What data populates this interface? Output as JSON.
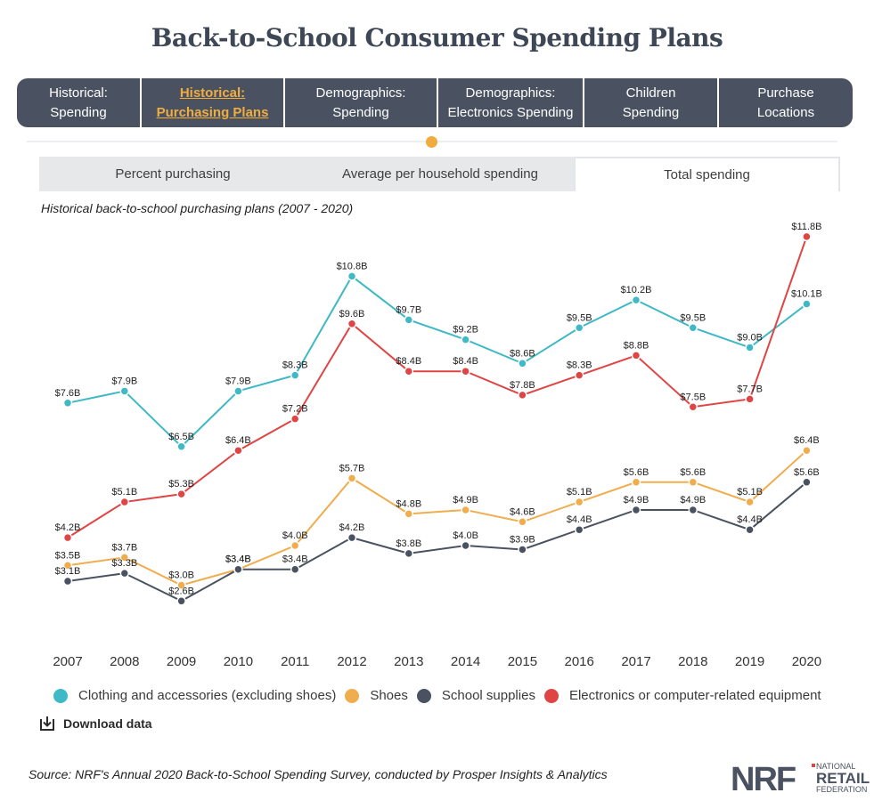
{
  "page": {
    "title": "Back-to-School Consumer Spending Plans"
  },
  "nav": {
    "tabs": [
      {
        "label": "Historical:\nSpending",
        "active": false
      },
      {
        "label": "Historical:\nPurchasing Plans",
        "active": true
      },
      {
        "label": "Demographics:\nSpending",
        "active": false
      },
      {
        "label": "Demographics:\nElectronics Spending",
        "active": false
      },
      {
        "label": "Children\nSpending",
        "active": false
      },
      {
        "label": "Purchase\nLocations",
        "active": false
      }
    ]
  },
  "subtabs": [
    {
      "label": "Percent purchasing",
      "active": false
    },
    {
      "label": "Average per household spending",
      "active": false
    },
    {
      "label": "Total spending",
      "active": true
    }
  ],
  "chart_caption": "Historical back-to-school purchasing plans (2007 - 2020)",
  "chart_data": {
    "type": "line",
    "title": "",
    "x": [
      "2007",
      "2008",
      "2009",
      "2010",
      "2011",
      "2012",
      "2013",
      "2014",
      "2015",
      "2016",
      "2017",
      "2018",
      "2019",
      "2020"
    ],
    "ylim": [
      2.0,
      12.0
    ],
    "grid": false,
    "legend_position": "bottom",
    "series": [
      {
        "name": "Clothing and accessories (excluding shoes)",
        "color": "#3fb9c5",
        "values": [
          7.6,
          7.9,
          6.5,
          7.9,
          8.3,
          10.8,
          9.7,
          9.2,
          8.6,
          9.5,
          10.2,
          9.5,
          9.0,
          10.1
        ],
        "labels": [
          "$7.6B",
          "$7.9B",
          "$6.5B",
          "$7.9B",
          "$8.3B",
          "$10.8B",
          "$9.7B",
          "$9.2B",
          "$8.6B",
          "$9.5B",
          "$10.2B",
          "$9.5B",
          "$9.0B",
          "$10.1B"
        ]
      },
      {
        "name": "Shoes",
        "color": "#f0ad4e",
        "values": [
          3.5,
          3.7,
          3.0,
          3.4,
          4.0,
          5.7,
          4.8,
          4.9,
          4.6,
          5.1,
          5.6,
          5.6,
          5.1,
          6.4
        ],
        "labels": [
          "$3.5B",
          "$3.7B",
          "$3.0B",
          "$3.4B",
          "$4.0B",
          "$5.7B",
          "$4.8B",
          "$4.9B",
          "$4.6B",
          "$5.1B",
          "$5.6B",
          "$5.6B",
          "$5.1B",
          "$6.4B"
        ]
      },
      {
        "name": "School supplies",
        "color": "#4a5262",
        "values": [
          3.1,
          3.3,
          2.6,
          3.4,
          3.4,
          4.2,
          3.8,
          4.0,
          3.9,
          4.4,
          4.9,
          4.9,
          4.4,
          5.6
        ],
        "labels": [
          "$3.1B",
          "$3.3B",
          "$2.6B",
          "$3.4B",
          "$3.4B",
          "$4.2B",
          "$3.8B",
          "$4.0B",
          "$3.9B",
          "$4.4B",
          "$4.9B",
          "$4.9B",
          "$4.4B",
          "$5.6B"
        ]
      },
      {
        "name": "Electronics or computer-related equipment",
        "color": "#e04545",
        "values": [
          4.2,
          5.1,
          5.3,
          6.4,
          7.2,
          9.6,
          8.4,
          8.4,
          7.8,
          8.3,
          8.8,
          7.5,
          7.7,
          11.8
        ],
        "labels": [
          "$4.2B",
          "$5.1B",
          "$5.3B",
          "$6.4B",
          "$7.2B",
          "$9.6B",
          "$8.4B",
          "$8.4B",
          "$7.8B",
          "$8.3B",
          "$8.8B",
          "$7.5B",
          "$7.7B",
          "$11.8B"
        ]
      }
    ]
  },
  "download": {
    "label": "Download data",
    "icon": "download-icon"
  },
  "source": "Source: NRF's Annual 2020 Back-to-School Spending Survey, conducted by Prosper Insights & Analytics",
  "logo": {
    "mark": "NRF",
    "line1": "NATIONAL",
    "line2": "RETAIL",
    "line3": "FEDERATION",
    "color": "#4a5262",
    "accent": "#e04545"
  }
}
